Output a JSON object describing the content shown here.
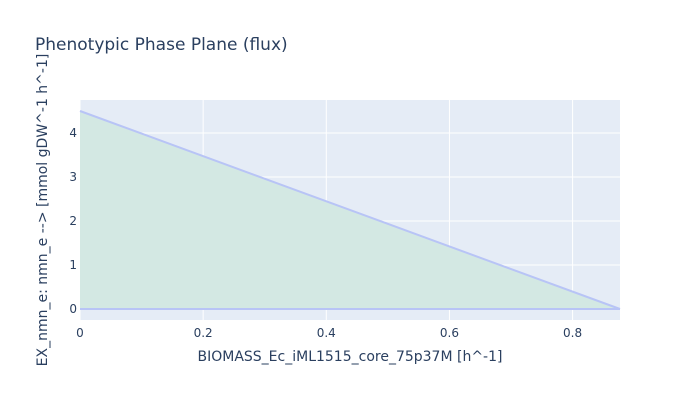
{
  "chart_data": {
    "type": "area",
    "title": "Phenotypic Phase Plane (flux)",
    "xlabel": "BIOMASS_Ec_iML1515_core_75p37M [h^-1]",
    "ylabel": "EX_nmn_e: nmn_e -->  [mmol gDW^-1 h^-1]",
    "xlim": [
      0,
      0.877
    ],
    "ylim": [
      -0.25,
      4.75
    ],
    "x_ticks": [
      0,
      0.2,
      0.4,
      0.6,
      0.8
    ],
    "x_tick_labels": [
      "0",
      "0.2",
      "0.4",
      "0.6",
      "0.8"
    ],
    "y_ticks": [
      0,
      1,
      2,
      3,
      4
    ],
    "y_tick_labels": [
      "0",
      "1",
      "2",
      "3",
      "4"
    ],
    "grid": true,
    "series": [
      {
        "role": "maximum",
        "x": [
          0,
          0.877
        ],
        "y": [
          4.5,
          0
        ]
      },
      {
        "role": "minimum",
        "x": [
          0,
          0.877
        ],
        "y": [
          0,
          0
        ]
      }
    ],
    "colors": {
      "plot_bg": "#e5ecf6",
      "grid": "#ffffff",
      "line": "#b8c4f6",
      "fill": "#d3e8e3",
      "text": "#2a3f5f"
    }
  }
}
